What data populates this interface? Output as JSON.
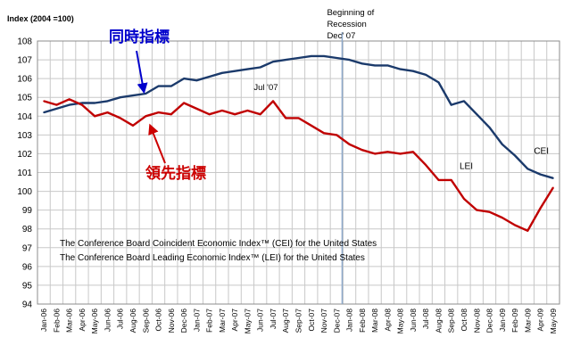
{
  "chart_data": {
    "type": "line",
    "ylabel": "Index (2004 =100)",
    "ylim": [
      94,
      108
    ],
    "yticks": [
      94,
      95,
      96,
      97,
      98,
      99,
      100,
      101,
      102,
      103,
      104,
      105,
      106,
      107,
      108
    ],
    "grid": true,
    "x": [
      "Jan-06",
      "Feb-06",
      "Mar-06",
      "Apr-06",
      "May-06",
      "Jun-06",
      "Jul-06",
      "Aug-06",
      "Sep-06",
      "Oct-06",
      "Nov-06",
      "Dec-06",
      "Jan-07",
      "Feb-07",
      "Mar-07",
      "Apr-07",
      "May-07",
      "Jun-07",
      "Jul-07",
      "Aug-07",
      "Sep-07",
      "Oct-07",
      "Nov-07",
      "Dec-07",
      "Jan-08",
      "Feb-08",
      "Mar-08",
      "Apr-08",
      "May-08",
      "Jun-08",
      "Jul-08",
      "Aug-08",
      "Sep-08",
      "Oct-08",
      "Nov-08",
      "Dec-08",
      "Jan-09",
      "Feb-09",
      "Mar-09",
      "Apr-09",
      "May-09"
    ],
    "series": [
      {
        "name": "CEI",
        "color": "#1b3a6b",
        "values": [
          104.2,
          104.4,
          104.6,
          104.7,
          104.7,
          104.8,
          105.0,
          105.1,
          105.2,
          105.6,
          105.6,
          106.0,
          105.9,
          106.1,
          106.3,
          106.4,
          106.5,
          106.6,
          106.9,
          107.0,
          107.1,
          107.2,
          107.2,
          107.1,
          107.0,
          106.8,
          106.7,
          106.7,
          106.5,
          106.4,
          106.2,
          105.8,
          104.6,
          104.8,
          104.1,
          103.4,
          102.5,
          101.9,
          101.2,
          100.9,
          100.7
        ]
      },
      {
        "name": "LEI",
        "color": "#c00000",
        "values": [
          104.8,
          104.6,
          104.9,
          104.6,
          104.0,
          104.2,
          103.9,
          103.5,
          104.0,
          104.2,
          104.1,
          104.7,
          104.4,
          104.1,
          104.3,
          104.1,
          104.3,
          104.1,
          104.8,
          103.9,
          103.9,
          103.5,
          103.1,
          103.0,
          102.5,
          102.2,
          102.0,
          102.1,
          102.0,
          102.1,
          101.4,
          100.6,
          100.6,
          99.6,
          99.0,
          98.9,
          98.6,
          98.2,
          97.9,
          99.1,
          100.2
        ]
      }
    ],
    "annotations": {
      "recession_line": {
        "at": "Dec-07",
        "label_lines": [
          "Beginning of",
          "Recession",
          "Dec' 07"
        ],
        "color": "#8eaacc"
      },
      "jul07_label": {
        "text": "Jul '07",
        "at": "Jul-07"
      },
      "cei_chinese": {
        "text": "同時指標",
        "color": "#0000cc"
      },
      "lei_chinese": {
        "text": "領先指標",
        "color": "#cc0000"
      },
      "note_line1": "The Conference Board Coincident Economic Index™ (CEI) for the United States",
      "note_line2": "The Conference Board Leading Economic Index™ (LEI) for the United States"
    }
  }
}
